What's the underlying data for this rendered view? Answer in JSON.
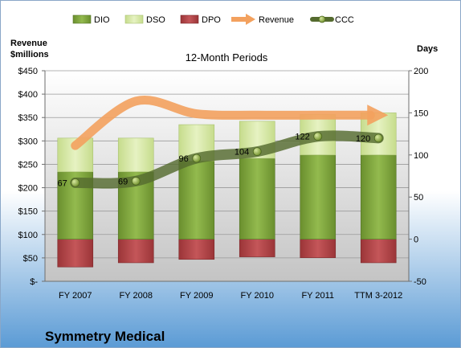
{
  "chart_data": {
    "type": "bar",
    "title": "12-Month Periods",
    "company": "Symmetry Medical",
    "left_axis": {
      "label_line1": "Revenue",
      "label_line2": "$millions",
      "ticks": [
        "$-",
        "$50",
        "$100",
        "$150",
        "$200",
        "$250",
        "$300",
        "$350",
        "$400",
        "$450"
      ],
      "range": [
        0,
        450
      ]
    },
    "right_axis": {
      "label": "Days",
      "ticks": [
        "-50",
        "0",
        "50",
        "100",
        "150",
        "200"
      ],
      "range": [
        -50,
        200
      ]
    },
    "categories": [
      "FY 2007",
      "FY 2008",
      "FY 2009",
      "FY 2010",
      "FY 2011",
      "TTM 3-2012"
    ],
    "legend": {
      "placement": "top",
      "items": [
        "DIO",
        "DSO",
        "DPO",
        "Revenue",
        "CCC"
      ]
    },
    "series": [
      {
        "name": "DIO",
        "axis": "days",
        "values": [
          80,
          80,
          93,
          96,
          100,
          100
        ]
      },
      {
        "name": "DSO",
        "axis": "days",
        "values": [
          40,
          40,
          43,
          44,
          48,
          50
        ]
      },
      {
        "name": "DPO",
        "axis": "days",
        "values": [
          -33,
          -28,
          -24,
          -21,
          -22,
          -28
        ]
      },
      {
        "name": "Revenue",
        "axis": "revenue",
        "values": [
          290,
          385,
          358,
          355,
          355,
          355
        ]
      },
      {
        "name": "CCC",
        "axis": "days",
        "values": [
          67,
          69,
          96,
          104,
          122,
          120
        ]
      }
    ],
    "ccc_labels": [
      "67",
      "69",
      "96",
      "104",
      "122",
      "120"
    ],
    "colors": {
      "dio": "#7ea43c",
      "dso": "#d6e8a4",
      "dpo": "#b7474a",
      "revenue": "#f3a15e",
      "ccc": "#556b2f",
      "ccc_marker": "#8aa83a",
      "plot_bg_top": "#ffffff",
      "plot_bg_bottom": "#c9c9c9",
      "page_bg_top": "#ffffff",
      "page_bg_bottom": "#5b9bd5"
    }
  }
}
